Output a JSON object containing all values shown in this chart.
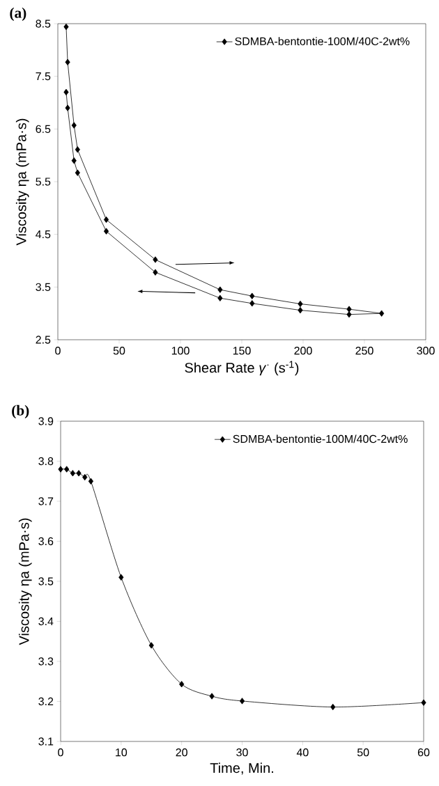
{
  "chart_data": [
    {
      "type": "line",
      "title": "**(a)**",
      "xlabel": "Shear Rate *γ*$^{·}$ (s$^{-1}$)",
      "ylabel": "Viscosity ηa (mPa·s)",
      "series": [
        {
          "name": "SDMBA-bentontie-100M/40C-2wt%",
          "color": "#000000",
          "x": [
            6.8,
            8.0,
            13.2,
            16.1,
            39.5,
            79.5,
            132.3,
            158.4,
            197.7,
            237.5,
            264,
            237.5,
            197.7,
            158.4,
            132.3,
            79.5,
            39.5,
            16.1,
            13.2,
            8.0,
            6.8
          ],
          "values": [
            8.44,
            7.77,
            6.57,
            6.11,
            4.78,
            4.02,
            3.45,
            3.33,
            3.18,
            3.08,
            3.0,
            2.98,
            3.06,
            3.19,
            3.29,
            3.78,
            4.56,
            5.67,
            5.9,
            6.9,
            7.2
          ]
        }
      ],
      "xlim": [
        0,
        300
      ],
      "xticks": [
        0,
        50,
        100,
        150,
        200,
        250,
        300
      ],
      "ylim": [
        2.5,
        8.5
      ],
      "yticks": [
        2.5,
        3.5,
        4.5,
        5.5,
        6.5,
        7.5,
        8.5
      ],
      "legend": "top right",
      "marker": "diamond",
      "grid": false
    },
    {
      "type": "line",
      "title": "**(b)**",
      "xlabel": "Time, Min.",
      "ylabel": "Viscosity ηa (mPa·s)",
      "series": [
        {
          "name": "SDMBA-bentontie-100M/40C-2wt%",
          "color": "#000000",
          "x": [
            0,
            1,
            2,
            3,
            4,
            5,
            10,
            15,
            20,
            25,
            30,
            45,
            60
          ],
          "values": [
            3.78,
            3.78,
            3.77,
            3.77,
            3.76,
            3.75,
            3.51,
            3.34,
            3.243,
            3.213,
            3.201,
            3.186,
            3.197
          ]
        }
      ],
      "xlim": [
        0,
        60
      ],
      "xticks": [
        0,
        10,
        20,
        30,
        40,
        50,
        60
      ],
      "ylim": [
        3.1,
        3.9
      ],
      "yticks": [
        3.1,
        3.2,
        3.3,
        3.4,
        3.5,
        3.6,
        3.7,
        3.8,
        3.9
      ],
      "legend": "top right",
      "marker": "diamond",
      "grid": false
    }
  ]
}
